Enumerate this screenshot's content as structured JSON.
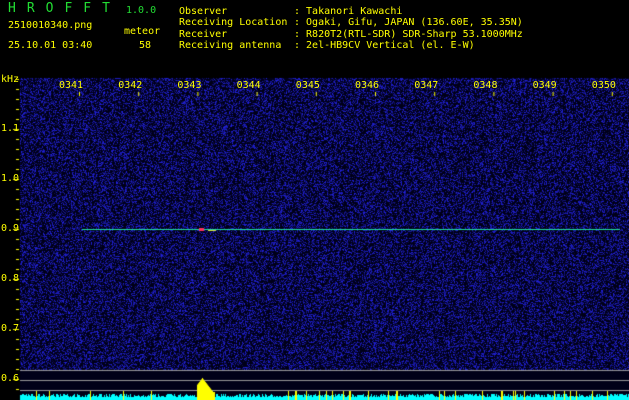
{
  "header": {
    "app_title": "HROFFT",
    "version": "1.0.0",
    "filename": "2510010340.png",
    "datetime": "25.10.01 03:40",
    "meteor_label": "meteor",
    "meteor_count": "58"
  },
  "info": [
    {
      "label": "Observer",
      "value": ": Takanori Kawachi"
    },
    {
      "label": "Receiving Location",
      "value": ": Ogaki, Gifu, JAPAN (136.60E, 35.35N)"
    },
    {
      "label": "Receiver",
      "value": ": R820T2(RTL-SDR) SDR-Sharp 53.1000MHz"
    },
    {
      "label": "Receiving antenna",
      "value": ": 2el-HB9CV Vertical (el. E-W)"
    }
  ],
  "chart_data": {
    "type": "heatmap",
    "ylabel": "kHz",
    "x_ticks": [
      "0341",
      "0342",
      "0343",
      "0344",
      "0345",
      "0346",
      "0347",
      "0348",
      "0349",
      "0350"
    ],
    "y_ticks": [
      "1.1",
      "1.0",
      "0.9",
      "0.8",
      "0.7",
      "0.6"
    ],
    "ylim": [
      0.57,
      1.2
    ],
    "trace_frequency_khz": 0.9,
    "meteor_echo_time": "0343",
    "colors": {
      "background": "#000018",
      "noise": "#2020c0",
      "trace": "#20e0a0",
      "bars": "#00ffff",
      "bar_peak": "#ffff00"
    }
  }
}
